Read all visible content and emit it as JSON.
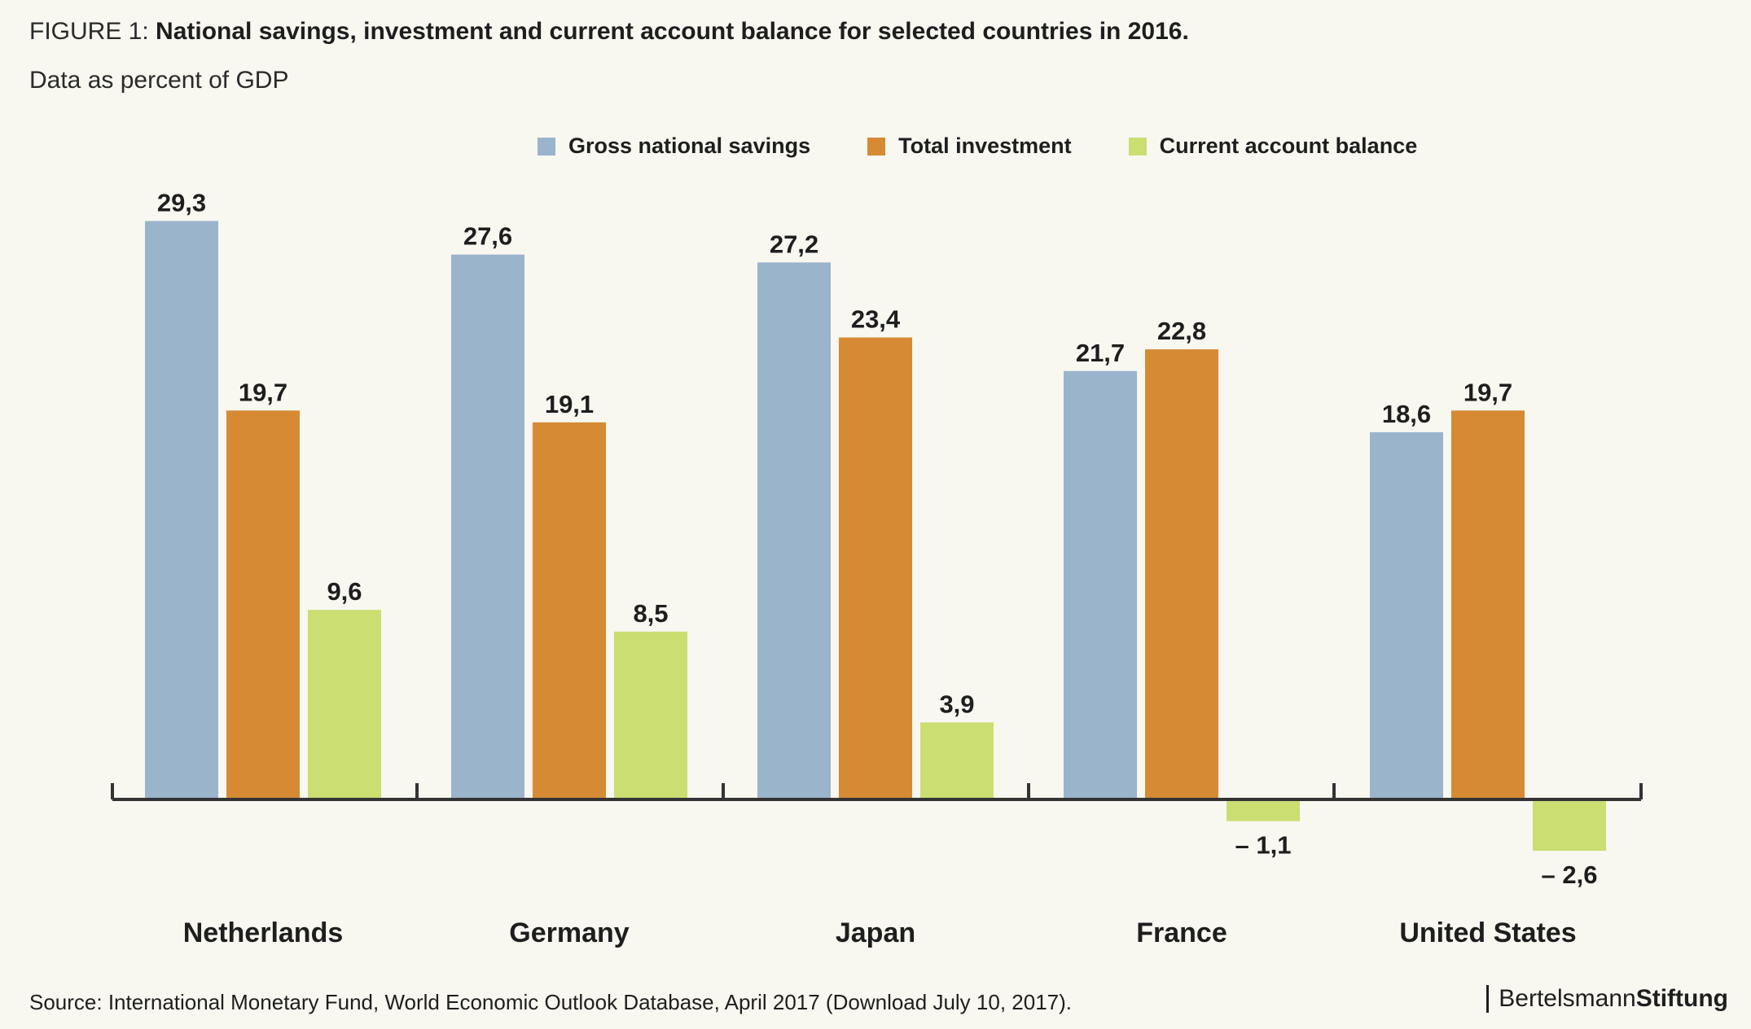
{
  "title": {
    "prefix": "FIGURE 1:",
    "main": "National savings, investment and current account balance for selected countries in 2016."
  },
  "subtitle": "Data as percent of GDP",
  "source": "Source: International Monetary Fund, World Economic Outlook Database, April 2017 (Download July 10, 2017).",
  "brand": {
    "part1": "Bertelsmann",
    "part2": "Stiftung"
  },
  "colors": {
    "savings": "#9ab4cc",
    "investment": "#d68a34",
    "balance": "#cade72",
    "axis": "#333333",
    "background": "#f8f7f0"
  },
  "chart_data": {
    "type": "bar",
    "title": "National savings, investment and current account balance for selected countries in 2016.",
    "subtitle": "Data as percent of GDP",
    "categories": [
      "Netherlands",
      "Germany",
      "Japan",
      "France",
      "United States"
    ],
    "series": [
      {
        "name": "Gross national savings",
        "values": [
          29.3,
          27.6,
          27.2,
          21.7,
          18.6
        ],
        "labels": [
          "29,3",
          "27,6",
          "27,2",
          "21,7",
          "18,6"
        ]
      },
      {
        "name": "Total investment",
        "values": [
          19.7,
          19.1,
          23.4,
          22.8,
          19.7
        ],
        "labels": [
          "19,7",
          "19,1",
          "23,4",
          "22,8",
          "19,7"
        ]
      },
      {
        "name": "Current account balance",
        "values": [
          9.6,
          8.5,
          3.9,
          -1.1,
          -2.6
        ],
        "labels": [
          "9,6",
          "8,5",
          "3,9",
          "– 1,1",
          "– 2,6"
        ]
      }
    ],
    "ylim": [
      -5,
      32
    ],
    "grid": false,
    "legend": "top-center"
  }
}
